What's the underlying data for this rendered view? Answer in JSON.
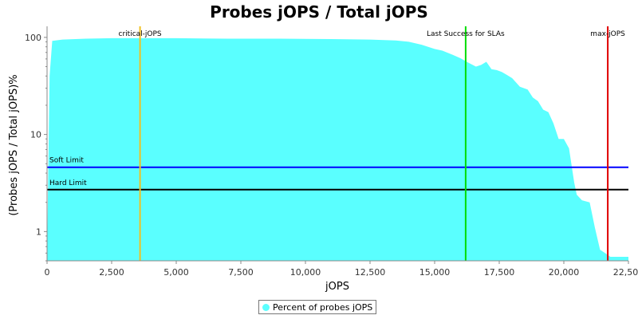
{
  "chart_data": {
    "type": "area",
    "title": "Probes jOPS / Total jOPS",
    "xlabel": "jOPS",
    "ylabel": "(Probes jOPS / Total jOPS)%",
    "xlim": [
      0,
      22500
    ],
    "ylim": [
      0.5,
      130
    ],
    "yscale": "log",
    "grid": false,
    "legend_position": "bottom-center",
    "x_tick_labels": [
      "0",
      "2,500",
      "5,000",
      "7,500",
      "10,000",
      "12,500",
      "15,000",
      "17,500",
      "20,000",
      "22,500"
    ],
    "x_ticks": [
      0,
      2500,
      5000,
      7500,
      10000,
      12500,
      15000,
      17500,
      20000,
      22500
    ],
    "y_tick_labels": [
      "1",
      "10",
      "100"
    ],
    "y_ticks": [
      1,
      10,
      100
    ],
    "series": [
      {
        "name": "Percent of probes jOPS",
        "color": "#5affff",
        "x": [
          0,
          100,
          200,
          600,
          1500,
          2500,
          3500,
          5000,
          7000,
          9000,
          11000,
          12500,
          13500,
          14000,
          14500,
          15000,
          15300,
          15700,
          16000,
          16300,
          16600,
          16800,
          17000,
          17200,
          17400,
          17600,
          17800,
          18000,
          18300,
          18600,
          18800,
          19000,
          19200,
          19400,
          19600,
          19800,
          20000,
          20200,
          20400,
          20500,
          20700,
          21000,
          21200,
          21400,
          21600,
          21800,
          22000,
          22500
        ],
        "y": [
          0.55,
          40,
          92,
          95,
          97,
          98,
          98,
          98,
          97,
          97,
          96,
          95,
          93,
          90,
          84,
          76,
          73,
          66,
          61,
          55,
          50,
          52,
          56,
          47,
          46,
          44,
          41,
          38,
          31,
          29,
          24,
          22,
          18,
          17,
          13,
          9,
          9,
          7.2,
          3.2,
          2.4,
          2.1,
          2.0,
          1.1,
          0.65,
          0.6,
          0.55,
          0.55,
          0.55
        ]
      }
    ],
    "vertical_markers": [
      {
        "label": "critical-jOPS",
        "x": 3600,
        "color": "#f0c020"
      },
      {
        "label": "Last Success for SLAs",
        "x": 16200,
        "color": "#00dd00"
      },
      {
        "label": "max-jOPS",
        "x": 21700,
        "color": "#e00000"
      }
    ],
    "horizontal_markers": [
      {
        "label": "Soft Limit",
        "y": 4.6,
        "color": "#0000ff"
      },
      {
        "label": "Hard Limit",
        "y": 2.7,
        "color": "#000000"
      }
    ]
  }
}
